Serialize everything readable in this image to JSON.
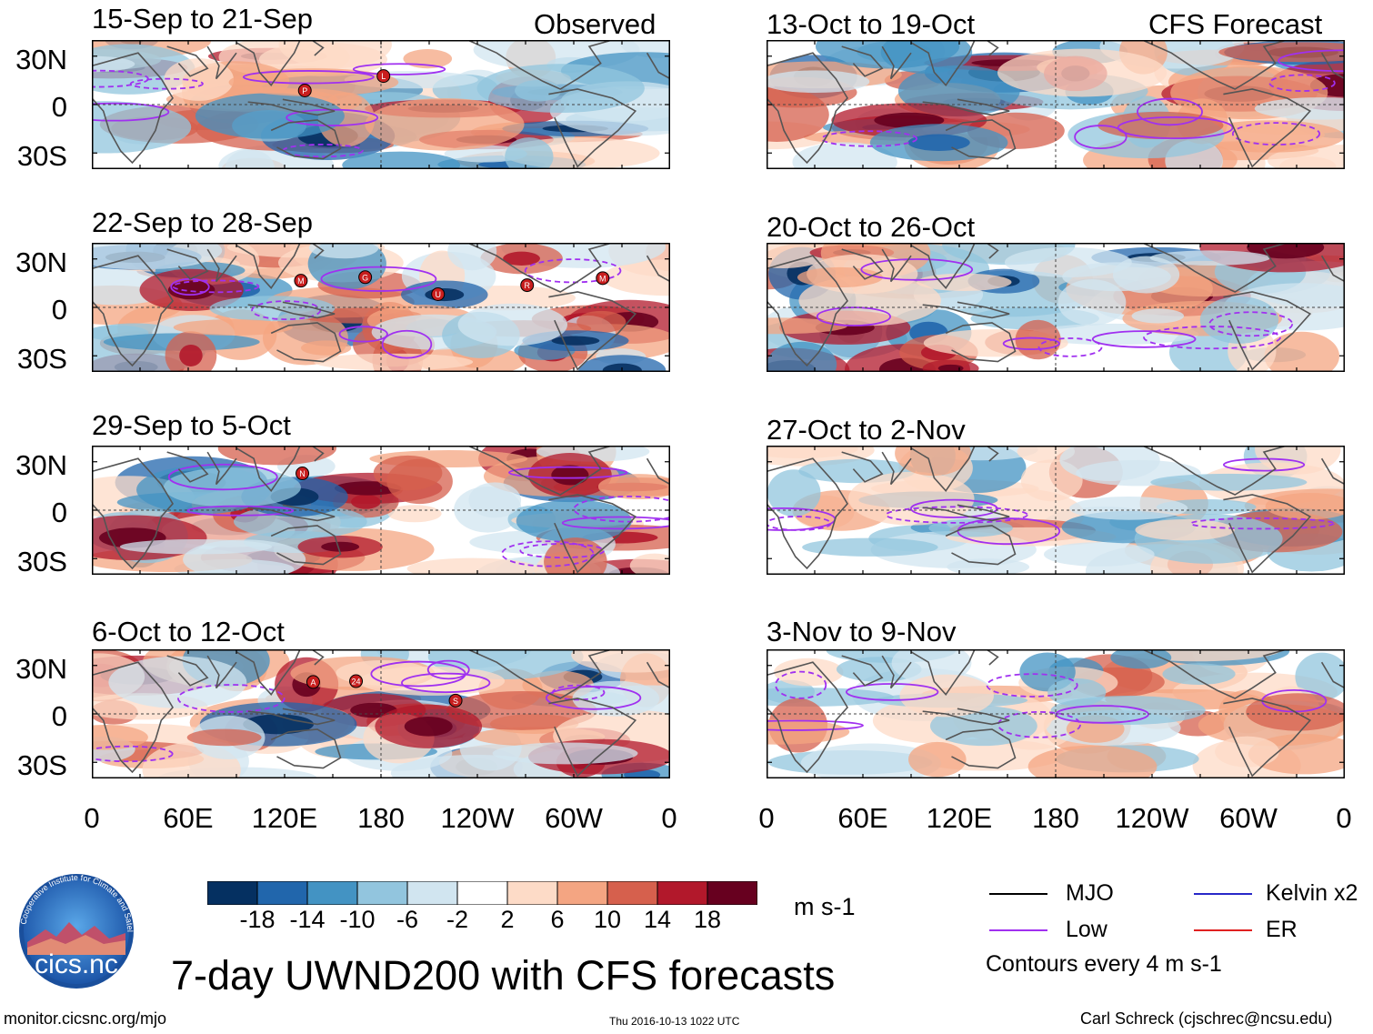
{
  "header": {
    "observed_label": "Observed",
    "forecast_label": "CFS Forecast"
  },
  "panels": {
    "observed": [
      {
        "period": "15-Sep to 21-Sep",
        "storms": [
          "P",
          "L"
        ]
      },
      {
        "period": "22-Sep to 28-Sep",
        "storms": [
          "M",
          "G",
          "U",
          "R",
          "M"
        ]
      },
      {
        "period": "29-Sep to 5-Oct",
        "storms": [
          "N"
        ]
      },
      {
        "period": "6-Oct to 12-Oct",
        "storms": [
          "A",
          "24",
          "S"
        ]
      }
    ],
    "forecast": [
      {
        "period": "13-Oct to 19-Oct"
      },
      {
        "period": "20-Oct to 26-Oct"
      },
      {
        "period": "27-Oct to 2-Nov"
      },
      {
        "period": "3-Nov to 9-Nov"
      }
    ]
  },
  "axes": {
    "lat_labels": [
      "30N",
      "0",
      "30S"
    ],
    "lon_labels": [
      "0",
      "60E",
      "120E",
      "180",
      "120W",
      "60W",
      "0"
    ]
  },
  "colorbar": {
    "labels": [
      "-18",
      "-14",
      "-10",
      "-6",
      "-2",
      "2",
      "6",
      "10",
      "14",
      "18"
    ],
    "units": "m s-1",
    "colors": [
      "#053061",
      "#2166ac",
      "#4393c3",
      "#92c5de",
      "#d1e5f0",
      "#ffffff",
      "#fddbc7",
      "#f4a582",
      "#d6604d",
      "#b2182b",
      "#67001f"
    ]
  },
  "legend": {
    "items": [
      {
        "label": "MJO",
        "color": "#000000"
      },
      {
        "label": "Kelvin x2",
        "color": "#2828c8"
      },
      {
        "label": "Low",
        "color": "#a030f0"
      },
      {
        "label": "ER",
        "color": "#e02020"
      }
    ],
    "note": "Contours every 4 m s-1"
  },
  "title": "7-day UWND200 with CFS forecasts",
  "logo_text": "cics.nc",
  "logo_ring_text": "Cooperative Institute for Climate and Satellites",
  "footer": {
    "website": "monitor.cicsnc.org/mjo",
    "timestamp": "Thu 2016-10-13 1022 UTC",
    "author": "Carl Schreck (cjschrec@ncsu.edu)"
  }
}
